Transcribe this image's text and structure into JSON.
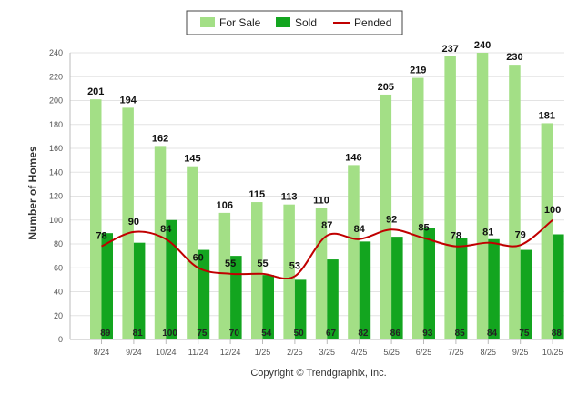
{
  "chart_data": {
    "type": "bar",
    "title": "",
    "xlabel": "",
    "ylabel": "Number of Homes",
    "ylim": [
      0,
      240
    ],
    "yticks": [
      0,
      20,
      40,
      60,
      80,
      100,
      120,
      140,
      160,
      180,
      200,
      220,
      240
    ],
    "grid": true,
    "legend_position": "top-center",
    "categories": [
      "8/24",
      "9/24",
      "10/24",
      "11/24",
      "12/24",
      "1/25",
      "2/25",
      "3/25",
      "4/25",
      "5/25",
      "6/25",
      "7/25",
      "8/25",
      "9/25",
      "10/25"
    ],
    "series": [
      {
        "name": "For Sale",
        "kind": "bar",
        "color": "#a3df86",
        "values": [
          201,
          194,
          162,
          145,
          106,
          115,
          113,
          110,
          146,
          205,
          219,
          237,
          240,
          230,
          181
        ]
      },
      {
        "name": "Sold",
        "kind": "bar",
        "color": "#13a51f",
        "values": [
          89,
          81,
          100,
          75,
          70,
          54,
          50,
          67,
          82,
          86,
          93,
          85,
          84,
          75,
          88
        ]
      },
      {
        "name": "Pended",
        "kind": "line",
        "color": "#c00000",
        "values": [
          78,
          90,
          84,
          60,
          55,
          55,
          53,
          87,
          84,
          92,
          85,
          78,
          81,
          79,
          100
        ]
      }
    ]
  },
  "footer": {
    "copyright": "Copyright © Trendgraphix, Inc."
  }
}
